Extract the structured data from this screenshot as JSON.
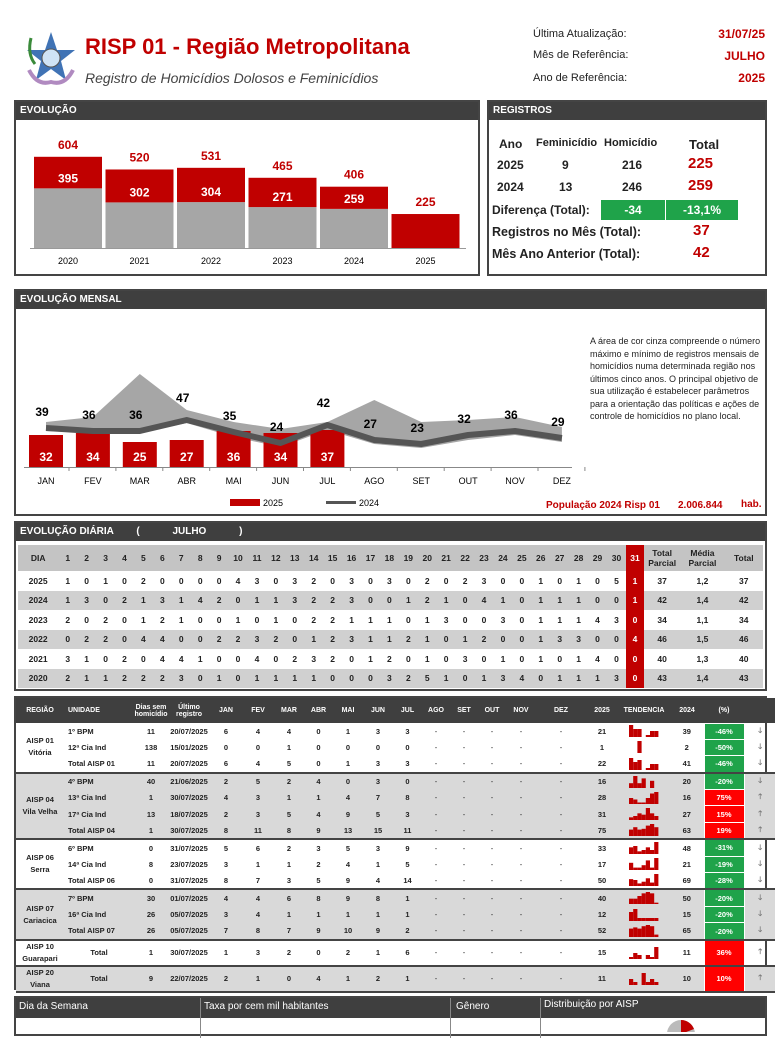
{
  "header": {
    "title": "RISP 01 - Região Metropolitana",
    "subtitle": "Registro de Homicídios Dolosos e Feminicídios",
    "last_update_label": "Última Atualização:",
    "last_update": "31/07/25",
    "ref_month_label": "Mês de Referência:",
    "ref_month": "JULHO",
    "ref_year_label": "Ano de Referência:",
    "ref_year": "2025"
  },
  "evolucao": {
    "title": "EVOLUÇÃO"
  },
  "registros": {
    "title": "REGISTROS",
    "col_year": "Ano",
    "col_fem": "Feminicídio",
    "col_hom": "Homicídio",
    "col_total": "Total",
    "rows": [
      {
        "year": "2025",
        "fem": "9",
        "hom": "216",
        "total": "225"
      },
      {
        "year": "2024",
        "fem": "13",
        "hom": "246",
        "total": "259"
      }
    ],
    "diff_label": "Diferença (Total):",
    "diff_abs": "-34",
    "diff_pct": "-13,1%",
    "month_label": "Registros no Mês (Total):",
    "month_value": "37",
    "prev_label": "Mês Ano Anterior (Total):",
    "prev_value": "42"
  },
  "mensal": {
    "title": "EVOLUÇÃO MENSAL",
    "note": "A área de cor cinza compreende o número máximo e mínimo de registros mensais de homicídios  numa determinada região nos últimos cinco anos.  O principal objetivo de sua utilização é estabelecer parâmetros para a orientação das políticas e ações de controle de homicídios no plano local.",
    "population_label": "População 2024 Risp 01",
    "population": "2.006.844",
    "population_unit": "hab."
  },
  "diaria": {
    "title": "EVOLUÇÃO DIÁRIA",
    "month_open": "(",
    "month": "JULHO",
    "month_close": ")",
    "headers": {
      "dia": "DIA",
      "total_parcial": "Total Parcial",
      "media_parcial": "Média Parcial",
      "total": "Total"
    },
    "rows": [
      {
        "year": "2025",
        "days": [
          1,
          0,
          1,
          0,
          2,
          0,
          0,
          0,
          0,
          4,
          3,
          0,
          3,
          2,
          0,
          3,
          0,
          3,
          0,
          2,
          0,
          2,
          3,
          0,
          0,
          1,
          0,
          1,
          0,
          5,
          1
        ],
        "total_parcial": "37",
        "media": "1,2",
        "total": "37"
      },
      {
        "year": "2024",
        "days": [
          1,
          3,
          0,
          2,
          1,
          3,
          1,
          4,
          2,
          0,
          1,
          1,
          3,
          2,
          2,
          3,
          0,
          0,
          1,
          2,
          1,
          0,
          4,
          1,
          0,
          1,
          1,
          1,
          0,
          0,
          1
        ],
        "total_parcial": "42",
        "media": "1,4",
        "total": "42"
      },
      {
        "year": "2023",
        "days": [
          2,
          0,
          2,
          0,
          1,
          2,
          1,
          0,
          0,
          1,
          0,
          1,
          0,
          2,
          2,
          1,
          1,
          1,
          0,
          1,
          3,
          0,
          0,
          3,
          0,
          1,
          1,
          1,
          4,
          3,
          0
        ],
        "total_parcial": "34",
        "media": "1,1",
        "total": "34"
      },
      {
        "year": "2022",
        "days": [
          0,
          2,
          2,
          0,
          4,
          4,
          0,
          0,
          2,
          2,
          3,
          2,
          0,
          1,
          2,
          3,
          1,
          1,
          2,
          1,
          0,
          1,
          2,
          0,
          0,
          1,
          3,
          3,
          0,
          0,
          4
        ],
        "total_parcial": "46",
        "media": "1,5",
        "total": "46"
      },
      {
        "year": "2021",
        "days": [
          3,
          1,
          0,
          2,
          0,
          4,
          4,
          1,
          0,
          0,
          4,
          0,
          2,
          3,
          2,
          0,
          1,
          2,
          0,
          1,
          0,
          3,
          0,
          1,
          0,
          1,
          0,
          1,
          4,
          0,
          0
        ],
        "total_parcial": "40",
        "media": "1,3",
        "total": "40"
      },
      {
        "year": "2020",
        "days": [
          2,
          1,
          1,
          2,
          2,
          2,
          3,
          0,
          1,
          0,
          1,
          1,
          1,
          1,
          0,
          0,
          0,
          3,
          2,
          5,
          1,
          0,
          1,
          3,
          4,
          0,
          1,
          1,
          1,
          3,
          0
        ],
        "total_parcial": "43",
        "media": "1,4",
        "total": "43"
      }
    ]
  },
  "regioes": {
    "headers": {
      "regiao": "REGIÃO",
      "unidade": "UNIDADE",
      "dias": "Dias sem homicídio",
      "ultimo": "Último registro",
      "months": [
        "JAN",
        "FEV",
        "MAR",
        "ABR",
        "MAI",
        "JUN",
        "JUL",
        "AGO",
        "SET",
        "OUT",
        "NOV",
        "DEZ"
      ],
      "y2025": "2025",
      "tendencia": "TENDENCIA",
      "y2024": "2024",
      "pct": "(%)"
    },
    "empty": "-",
    "groups": [
      {
        "name": "AISP 01",
        "city": "Vitória",
        "rows": [
          {
            "unit": "1º BPM",
            "dias": "11",
            "ultimo": "20/07/2025",
            "months": [
              6,
              4,
              4,
              0,
              1,
              3,
              3
            ],
            "y2025": "21",
            "y2024": "39",
            "pct": "-46%",
            "trend": "down"
          },
          {
            "unit": "12ª Cia Ind",
            "dias": "138",
            "ultimo": "15/01/2025",
            "months": [
              0,
              0,
              1,
              0,
              0,
              0,
              0
            ],
            "y2025": "1",
            "y2024": "2",
            "pct": "-50%",
            "trend": "down"
          },
          {
            "unit": "Total AISP 01",
            "dias": "11",
            "ultimo": "20/07/2025",
            "months": [
              6,
              4,
              5,
              0,
              1,
              3,
              3
            ],
            "y2025": "22",
            "y2024": "41",
            "pct": "-46%",
            "trend": "down"
          }
        ]
      },
      {
        "name": "AISP 04",
        "city": "Vila Velha",
        "rows": [
          {
            "unit": "4º BPM",
            "dias": "40",
            "ultimo": "21/06/2025",
            "months": [
              2,
              5,
              2,
              4,
              0,
              3,
              0
            ],
            "y2025": "16",
            "y2024": "20",
            "pct": "-20%",
            "trend": "down"
          },
          {
            "unit": "13ª Cia Ind",
            "dias": "1",
            "ultimo": "30/07/2025",
            "months": [
              4,
              3,
              1,
              1,
              4,
              7,
              8
            ],
            "y2025": "28",
            "y2024": "16",
            "pct": "75%",
            "trend": "up"
          },
          {
            "unit": "17ª Cia Ind",
            "dias": "13",
            "ultimo": "18/07/2025",
            "months": [
              2,
              3,
              5,
              4,
              9,
              5,
              3
            ],
            "y2025": "31",
            "y2024": "27",
            "pct": "15%",
            "trend": "up"
          },
          {
            "unit": "Total AISP 04",
            "dias": "1",
            "ultimo": "30/07/2025",
            "months": [
              8,
              11,
              8,
              9,
              13,
              15,
              11
            ],
            "y2025": "75",
            "y2024": "63",
            "pct": "19%",
            "trend": "up"
          }
        ]
      },
      {
        "name": "AISP 06",
        "city": "Serra",
        "rows": [
          {
            "unit": "6º BPM",
            "dias": "0",
            "ultimo": "31/07/2025",
            "months": [
              5,
              6,
              2,
              3,
              5,
              3,
              9
            ],
            "y2025": "33",
            "y2024": "48",
            "pct": "-31%",
            "trend": "down"
          },
          {
            "unit": "14ª Cia Ind",
            "dias": "8",
            "ultimo": "23/07/2025",
            "months": [
              3,
              1,
              1,
              2,
              4,
              1,
              5
            ],
            "y2025": "17",
            "y2024": "21",
            "pct": "-19%",
            "trend": "down"
          },
          {
            "unit": "Total AISP 06",
            "dias": "0",
            "ultimo": "31/07/2025",
            "months": [
              8,
              7,
              3,
              5,
              9,
              4,
              14
            ],
            "y2025": "50",
            "y2024": "69",
            "pct": "-28%",
            "trend": "down"
          }
        ]
      },
      {
        "name": "AISP 07",
        "city": "Cariacica",
        "rows": [
          {
            "unit": "7º BPM",
            "dias": "30",
            "ultimo": "01/07/2025",
            "months": [
              4,
              4,
              6,
              8,
              9,
              8,
              1
            ],
            "y2025": "40",
            "y2024": "50",
            "pct": "-20%",
            "trend": "down"
          },
          {
            "unit": "16ª Cia Ind",
            "dias": "26",
            "ultimo": "05/07/2025",
            "months": [
              3,
              4,
              1,
              1,
              1,
              1,
              1
            ],
            "y2025": "12",
            "y2024": "15",
            "pct": "-20%",
            "trend": "down"
          },
          {
            "unit": "Total AISP 07",
            "dias": "26",
            "ultimo": "05/07/2025",
            "months": [
              7,
              8,
              7,
              9,
              10,
              9,
              2
            ],
            "y2025": "52",
            "y2024": "65",
            "pct": "-20%",
            "trend": "down"
          }
        ]
      },
      {
        "name": "AISP 10",
        "city": "Guarapari",
        "rows": [
          {
            "unit": "Total",
            "dias": "1",
            "ultimo": "30/07/2025",
            "months": [
              1,
              3,
              2,
              0,
              2,
              1,
              6
            ],
            "y2025": "15",
            "y2024": "11",
            "pct": "36%",
            "trend": "up"
          }
        ]
      },
      {
        "name": "AISP 20",
        "city": "Viana",
        "rows": [
          {
            "unit": "Total",
            "dias": "9",
            "ultimo": "22/07/2025",
            "months": [
              2,
              1,
              0,
              4,
              1,
              2,
              1
            ],
            "y2025": "11",
            "y2024": "10",
            "pct": "10%",
            "trend": "up"
          }
        ]
      }
    ]
  },
  "bottom": {
    "dia_semana": "Dia da Semana",
    "taxa": "Taxa por cem mil habitantes",
    "genero": "Gênero",
    "distribuicao": "Distribuição por AISP"
  },
  "colors": {
    "red": "#c00000",
    "gray": "#a6a6a6",
    "dark": "#3f3f3f",
    "green": "#1fa34a",
    "bright_red": "#ff0000"
  },
  "chart_data": [
    {
      "type": "bar",
      "title": "EVOLUÇÃO",
      "categories": [
        "2020",
        "2021",
        "2022",
        "2023",
        "2024",
        "2025"
      ],
      "series": [
        {
          "values": [
            395,
            302,
            304,
            271,
            259,
            225
          ]
        },
        {
          "values": [
            209,
            218,
            227,
            194,
            147,
            null
          ]
        }
      ],
      "totals": [
        604,
        520,
        531,
        465,
        406,
        225
      ]
    },
    {
      "type": "bar",
      "title": "EVOLUÇÃO MENSAL",
      "categories": [
        "JAN",
        "FEV",
        "MAR",
        "ABR",
        "MAI",
        "JUN",
        "JUL",
        "AGO",
        "SET",
        "OUT",
        "NOV",
        "DEZ"
      ],
      "series": [
        {
          "name": "2025",
          "type": "bar",
          "values": [
            32,
            34,
            25,
            27,
            36,
            34,
            37,
            null,
            null,
            null,
            null,
            null
          ]
        },
        {
          "name": "2024",
          "type": "line",
          "values": [
            39,
            36,
            36,
            47,
            35,
            24,
            42,
            27,
            23,
            32,
            36,
            29
          ]
        }
      ],
      "band_max": [
        45,
        50,
        93,
        57,
        45,
        38,
        45,
        67,
        45,
        47,
        50,
        40
      ],
      "band_min": [
        36,
        34,
        34,
        44,
        30,
        20,
        37,
        23,
        19,
        27,
        32,
        25
      ]
    }
  ]
}
